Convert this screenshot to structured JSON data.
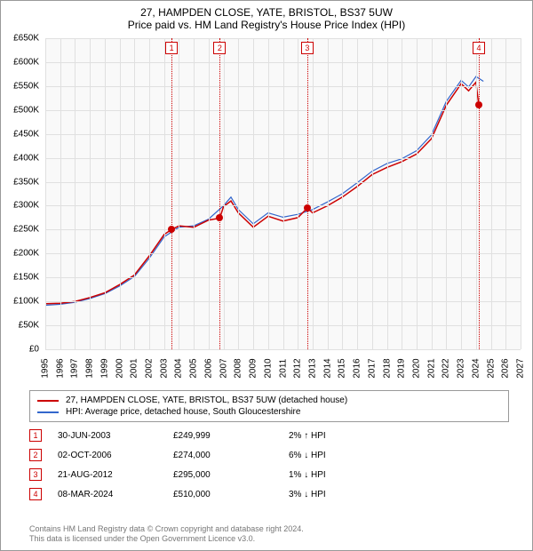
{
  "title": "27, HAMPDEN CLOSE, YATE, BRISTOL, BS37 5UW",
  "subtitle": "Price paid vs. HM Land Registry's House Price Index (HPI)",
  "chart": {
    "type": "line",
    "background_color": "#f9f9f9",
    "grid_color": "#e0e0e0",
    "x": {
      "min": 1995,
      "max": 2027,
      "tick_step": 1,
      "labels": [
        "1995",
        "1996",
        "1997",
        "1998",
        "1999",
        "2000",
        "2001",
        "2002",
        "2003",
        "2004",
        "2005",
        "2006",
        "2007",
        "2008",
        "2009",
        "2010",
        "2011",
        "2012",
        "2013",
        "2014",
        "2015",
        "2016",
        "2017",
        "2018",
        "2019",
        "2020",
        "2021",
        "2022",
        "2023",
        "2024",
        "2025",
        "2026",
        "2027"
      ]
    },
    "y": {
      "min": 0,
      "max": 650000,
      "tick_step": 50000,
      "labels": [
        "£0",
        "£50K",
        "£100K",
        "£150K",
        "£200K",
        "£250K",
        "£300K",
        "£350K",
        "£400K",
        "£450K",
        "£500K",
        "£550K",
        "£600K",
        "£650K"
      ]
    },
    "series": [
      {
        "name": "property",
        "label": "27, HAMPDEN CLOSE, YATE, BRISTOL, BS37 5UW (detached house)",
        "color": "#cc0000",
        "width": 1.5,
        "points": [
          [
            1995,
            95000
          ],
          [
            1996,
            96000
          ],
          [
            1997,
            100000
          ],
          [
            1998,
            108000
          ],
          [
            1999,
            118000
          ],
          [
            2000,
            135000
          ],
          [
            2001,
            155000
          ],
          [
            2002,
            195000
          ],
          [
            2003,
            240000
          ],
          [
            2003.5,
            249999
          ],
          [
            2004,
            258000
          ],
          [
            2005,
            255000
          ],
          [
            2006,
            270000
          ],
          [
            2006.75,
            274000
          ],
          [
            2007,
            298000
          ],
          [
            2007.5,
            310000
          ],
          [
            2008,
            285000
          ],
          [
            2009,
            255000
          ],
          [
            2010,
            278000
          ],
          [
            2011,
            268000
          ],
          [
            2012,
            275000
          ],
          [
            2012.64,
            295000
          ],
          [
            2013,
            285000
          ],
          [
            2014,
            300000
          ],
          [
            2015,
            318000
          ],
          [
            2016,
            340000
          ],
          [
            2017,
            365000
          ],
          [
            2018,
            380000
          ],
          [
            2019,
            392000
          ],
          [
            2020,
            408000
          ],
          [
            2021,
            440000
          ],
          [
            2022,
            510000
          ],
          [
            2023,
            555000
          ],
          [
            2023.5,
            540000
          ],
          [
            2024,
            558000
          ],
          [
            2024.19,
            510000
          ]
        ]
      },
      {
        "name": "hpi",
        "label": "HPI: Average price, detached house, South Gloucestershire",
        "color": "#3366cc",
        "width": 1.2,
        "points": [
          [
            1995,
            92000
          ],
          [
            1996,
            94000
          ],
          [
            1997,
            98000
          ],
          [
            1998,
            106000
          ],
          [
            1999,
            116000
          ],
          [
            2000,
            132000
          ],
          [
            2001,
            152000
          ],
          [
            2002,
            190000
          ],
          [
            2003,
            235000
          ],
          [
            2004,
            255000
          ],
          [
            2005,
            258000
          ],
          [
            2006,
            272000
          ],
          [
            2007,
            300000
          ],
          [
            2007.5,
            318000
          ],
          [
            2008,
            292000
          ],
          [
            2009,
            262000
          ],
          [
            2010,
            285000
          ],
          [
            2011,
            276000
          ],
          [
            2012,
            282000
          ],
          [
            2013,
            292000
          ],
          [
            2014,
            308000
          ],
          [
            2015,
            325000
          ],
          [
            2016,
            348000
          ],
          [
            2017,
            372000
          ],
          [
            2018,
            388000
          ],
          [
            2019,
            398000
          ],
          [
            2020,
            415000
          ],
          [
            2021,
            448000
          ],
          [
            2022,
            518000
          ],
          [
            2023,
            562000
          ],
          [
            2023.5,
            548000
          ],
          [
            2024,
            570000
          ],
          [
            2024.5,
            560000
          ]
        ]
      }
    ],
    "markers": [
      {
        "n": "1",
        "year": 2003.5,
        "price": 249999,
        "color": "#cc0000"
      },
      {
        "n": "2",
        "year": 2006.75,
        "price": 274000,
        "color": "#cc0000"
      },
      {
        "n": "3",
        "year": 2012.64,
        "price": 295000,
        "color": "#cc0000"
      },
      {
        "n": "4",
        "year": 2024.19,
        "price": 510000,
        "color": "#cc0000"
      }
    ]
  },
  "legend": {
    "items": [
      {
        "color": "#cc0000",
        "label": "27, HAMPDEN CLOSE, YATE, BRISTOL, BS37 5UW (detached house)"
      },
      {
        "color": "#3366cc",
        "label": "HPI: Average price, detached house, South Gloucestershire"
      }
    ]
  },
  "transactions": [
    {
      "n": "1",
      "date": "30-JUN-2003",
      "price": "£249,999",
      "diff": "2% ↑ HPI",
      "color": "#cc0000"
    },
    {
      "n": "2",
      "date": "02-OCT-2006",
      "price": "£274,000",
      "diff": "6% ↓ HPI",
      "color": "#cc0000"
    },
    {
      "n": "3",
      "date": "21-AUG-2012",
      "price": "£295,000",
      "diff": "1% ↓ HPI",
      "color": "#cc0000"
    },
    {
      "n": "4",
      "date": "08-MAR-2024",
      "price": "£510,000",
      "diff": "3% ↓ HPI",
      "color": "#cc0000"
    }
  ],
  "footer": {
    "line1": "Contains HM Land Registry data © Crown copyright and database right 2024.",
    "line2": "This data is licensed under the Open Government Licence v3.0."
  }
}
